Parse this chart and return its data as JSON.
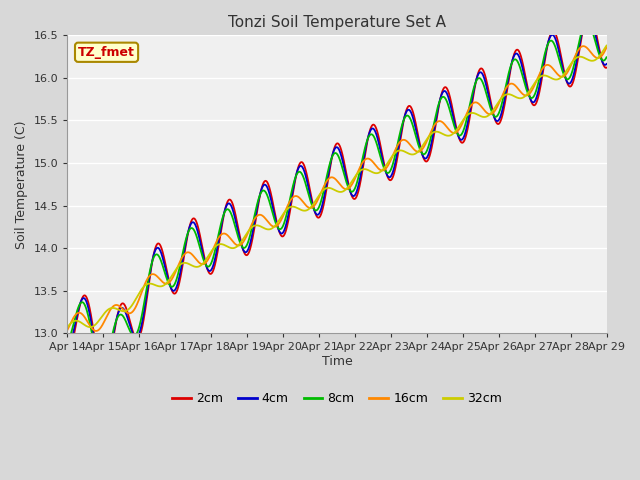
{
  "title": "Tonzi Soil Temperature Set A",
  "xlabel": "Time",
  "ylabel": "Soil Temperature (C)",
  "ylim": [
    13.0,
    16.5
  ],
  "xlim": [
    0,
    15
  ],
  "outer_bg": "#d8d8d8",
  "plot_bg": "#f0f0f0",
  "annotation_text": "TZ_fmet",
  "annotation_bg": "#ffffcc",
  "annotation_border": "#aa8800",
  "series_colors": [
    "#dd0000",
    "#0000cc",
    "#00bb00",
    "#ff8800",
    "#cccc00"
  ],
  "series_labels": [
    "2cm",
    "4cm",
    "8cm",
    "16cm",
    "32cm"
  ],
  "tick_labels": [
    "Apr 14",
    "Apr 15",
    "Apr 16",
    "Apr 17",
    "Apr 18",
    "Apr 19",
    "Apr 20",
    "Apr 21",
    "Apr 22",
    "Apr 23",
    "Apr 24",
    "Apr 25",
    "Apr 26",
    "Apr 27",
    "Apr 28",
    "Apr 29"
  ],
  "tick_positions": [
    0,
    1,
    2,
    3,
    4,
    5,
    6,
    7,
    8,
    9,
    10,
    11,
    12,
    13,
    14,
    15
  ],
  "yticks": [
    13.0,
    13.5,
    14.0,
    14.5,
    15.0,
    15.5,
    16.0,
    16.5
  ]
}
